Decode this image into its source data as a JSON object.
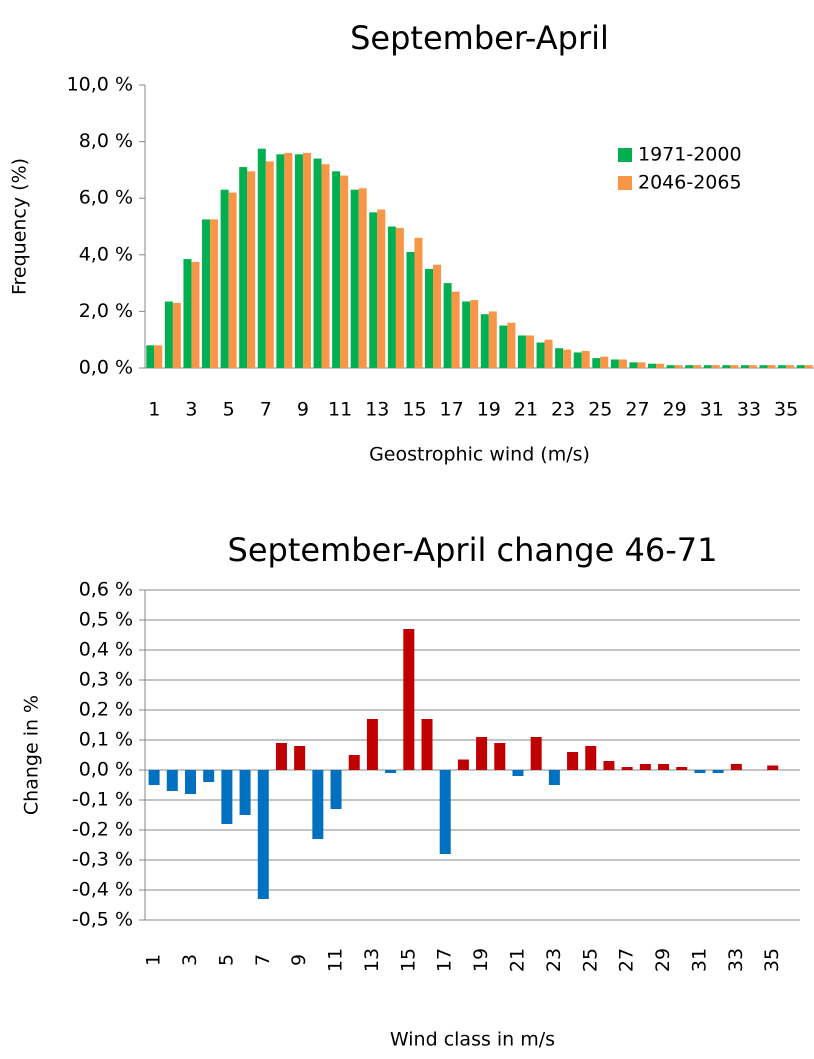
{
  "chart_data": [
    {
      "type": "bar",
      "title": "September-April",
      "x_label": "Geostrophic wind (m/s)",
      "y_label": "Frequency (%)",
      "categories": [
        "1",
        null,
        "3",
        null,
        "5",
        null,
        "7",
        null,
        "9",
        null,
        "11",
        null,
        "13",
        null,
        "15",
        null,
        "17",
        null,
        "19",
        null,
        "21",
        null,
        "23",
        null,
        "25",
        null,
        "27",
        null,
        "29",
        null,
        "31",
        null,
        "33",
        null,
        "35",
        null
      ],
      "series": [
        {
          "name": "1971-2000",
          "color": "#00b050",
          "values": [
            0.8,
            2.35,
            3.85,
            5.25,
            6.3,
            7.1,
            7.75,
            7.55,
            7.55,
            7.4,
            6.95,
            6.3,
            5.5,
            5.0,
            4.1,
            3.5,
            3.0,
            2.35,
            1.9,
            1.5,
            1.15,
            0.9,
            0.7,
            0.55,
            0.35,
            0.3,
            0.2,
            0.15,
            0.1,
            0.1,
            0.1,
            0.1,
            0.1,
            0.1,
            0.1,
            0.1
          ]
        },
        {
          "name": "2046-2065",
          "color": "#f79646",
          "values": [
            0.8,
            2.3,
            3.75,
            5.25,
            6.2,
            6.95,
            7.3,
            7.6,
            7.6,
            7.2,
            6.8,
            6.35,
            5.6,
            4.95,
            4.6,
            3.65,
            2.7,
            2.4,
            2.0,
            1.6,
            1.15,
            1.0,
            0.65,
            0.6,
            0.4,
            0.3,
            0.2,
            0.15,
            0.1,
            0.1,
            0.1,
            0.1,
            0.1,
            0.1,
            0.1,
            0.1
          ]
        }
      ],
      "ylim": [
        0,
        10
      ],
      "yticks": [
        {
          "value": 0,
          "label": "0,0 %"
        },
        {
          "value": 2,
          "label": "2,0 %"
        },
        {
          "value": 4,
          "label": "4,0 %"
        },
        {
          "value": 6,
          "label": "6,0 %"
        },
        {
          "value": 8,
          "label": "8,0 %"
        },
        {
          "value": 10,
          "label": "10,0 %"
        }
      ],
      "grid": false,
      "legend": "upper-right"
    },
    {
      "type": "bar",
      "title": "September-April change 46-71",
      "x_label": "Wind class in m/s",
      "y_label": "Change in %",
      "categories": [
        "1",
        null,
        "3",
        null,
        "5",
        null,
        "7",
        null,
        "9",
        null,
        "11",
        null,
        "13",
        null,
        "15",
        null,
        "17",
        null,
        "19",
        null,
        "21",
        null,
        "23",
        null,
        "25",
        null,
        "27",
        null,
        "29",
        null,
        "31",
        null,
        "33",
        null,
        "35",
        null
      ],
      "values": [
        -0.05,
        -0.07,
        -0.08,
        -0.04,
        -0.18,
        -0.15,
        -0.43,
        0.09,
        0.08,
        -0.23,
        -0.13,
        0.05,
        0.17,
        -0.01,
        0.47,
        0.17,
        -0.28,
        0.035,
        0.11,
        0.09,
        -0.02,
        0.11,
        -0.05,
        0.06,
        0.08,
        0.03,
        0.01,
        0.02,
        0.02,
        0.01,
        -0.01,
        -0.01,
        0.02,
        0,
        0.015,
        0
      ],
      "positive_color": "#c00000",
      "negative_color": "#0070c0",
      "ylim": [
        -0.5,
        0.6
      ],
      "yticks": [
        {
          "value": -0.5,
          "label": "-0,5 %"
        },
        {
          "value": -0.4,
          "label": "-0,4 %"
        },
        {
          "value": -0.3,
          "label": "-0,3 %"
        },
        {
          "value": -0.2,
          "label": "-0,2 %"
        },
        {
          "value": -0.1,
          "label": "-0,1 %"
        },
        {
          "value": 0,
          "label": "0,0 %"
        },
        {
          "value": 0.1,
          "label": "0,1 %"
        },
        {
          "value": 0.2,
          "label": "0,2 %"
        },
        {
          "value": 0.3,
          "label": "0,3 %"
        },
        {
          "value": 0.4,
          "label": "0,4 %"
        },
        {
          "value": 0.5,
          "label": "0,5 %"
        },
        {
          "value": 0.6,
          "label": "0,6 %"
        }
      ],
      "grid": true,
      "x_label_rotation": true
    }
  ]
}
